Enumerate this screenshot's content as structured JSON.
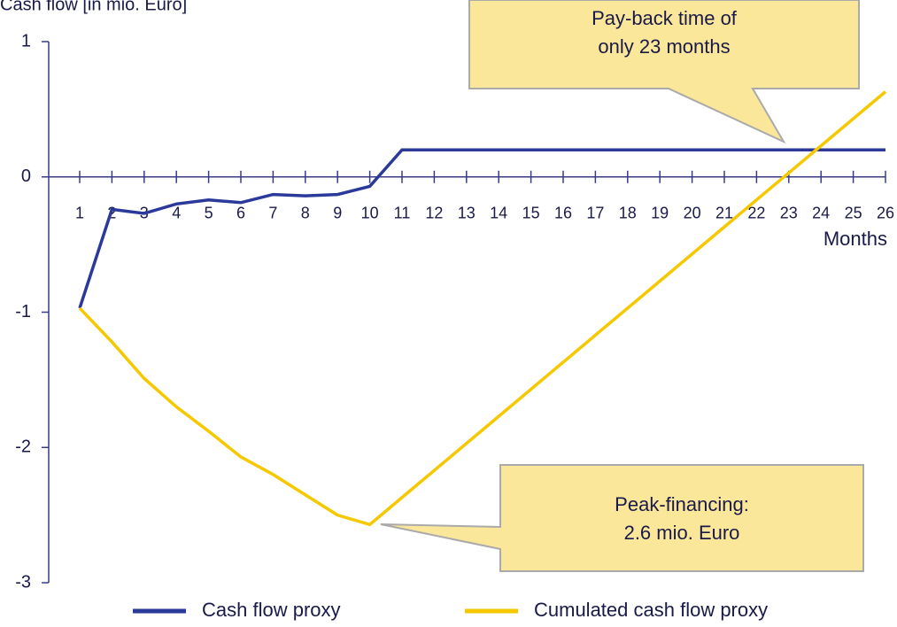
{
  "chart_data": {
    "type": "line",
    "y_label": "Cash flow [in mio. Euro]",
    "x_label": "Months",
    "x": [
      1,
      2,
      3,
      4,
      5,
      6,
      7,
      8,
      9,
      10,
      11,
      12,
      13,
      14,
      15,
      16,
      17,
      18,
      19,
      20,
      21,
      22,
      23,
      24,
      25,
      26
    ],
    "xlim": [
      1,
      26
    ],
    "ylim": [
      -3,
      1
    ],
    "yticks": [
      -3,
      -2,
      -1,
      0,
      1
    ],
    "series": [
      {
        "name": "Cash flow proxy",
        "color": "#2b3a9a",
        "values": [
          -0.97,
          -0.24,
          -0.27,
          -0.2,
          -0.17,
          -0.19,
          -0.13,
          -0.14,
          -0.13,
          -0.07,
          0.2,
          0.2,
          0.2,
          0.2,
          0.2,
          0.2,
          0.2,
          0.2,
          0.2,
          0.2,
          0.2,
          0.2,
          0.2,
          0.2,
          0.2,
          0.2
        ]
      },
      {
        "name": "Cumulated cash flow proxy",
        "color": "#f5c800",
        "values": [
          -0.97,
          -1.22,
          -1.49,
          -1.7,
          -1.88,
          -2.07,
          -2.2,
          -2.35,
          -2.5,
          -2.57,
          -2.37,
          -2.17,
          -1.97,
          -1.77,
          -1.57,
          -1.37,
          -1.17,
          -0.97,
          -0.77,
          -0.57,
          -0.37,
          -0.17,
          0.03,
          0.23,
          0.43,
          0.63
        ]
      }
    ],
    "annotations": [
      {
        "lines": [
          "Pay-back time of",
          "only 23 months"
        ]
      },
      {
        "lines": [
          "Peak-financing:",
          "2.6 mio. Euro"
        ]
      }
    ]
  }
}
